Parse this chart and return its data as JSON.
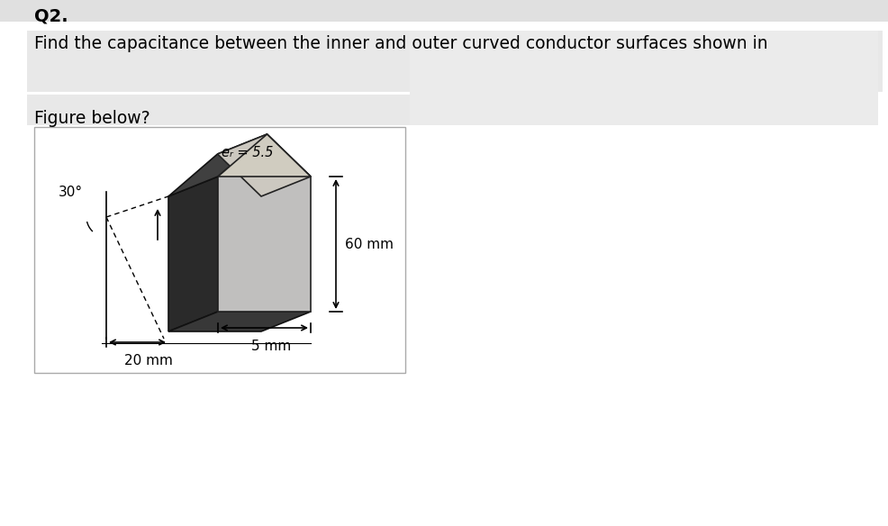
{
  "title": "Q2.",
  "question_line1": "Find the capacitance between the inner and outer curved conductor surfaces shown in",
  "question_line2": "Figure below?",
  "bg_white": "#ffffff",
  "bg_gray": "#e8e8e8",
  "bg_gray2": "#f0f0f0",
  "angle_label": "30°",
  "epsilon_label": "eᵣ = 5.5",
  "dim1": "60 mm",
  "dim2": "5 mm",
  "dim3": "20 mm",
  "dark_face": "#2a2a2a",
  "mid_face": "#555555",
  "light_face": "#c0bfbe",
  "top_face": "#ccc8c0",
  "right_face": "#b8b5b0"
}
